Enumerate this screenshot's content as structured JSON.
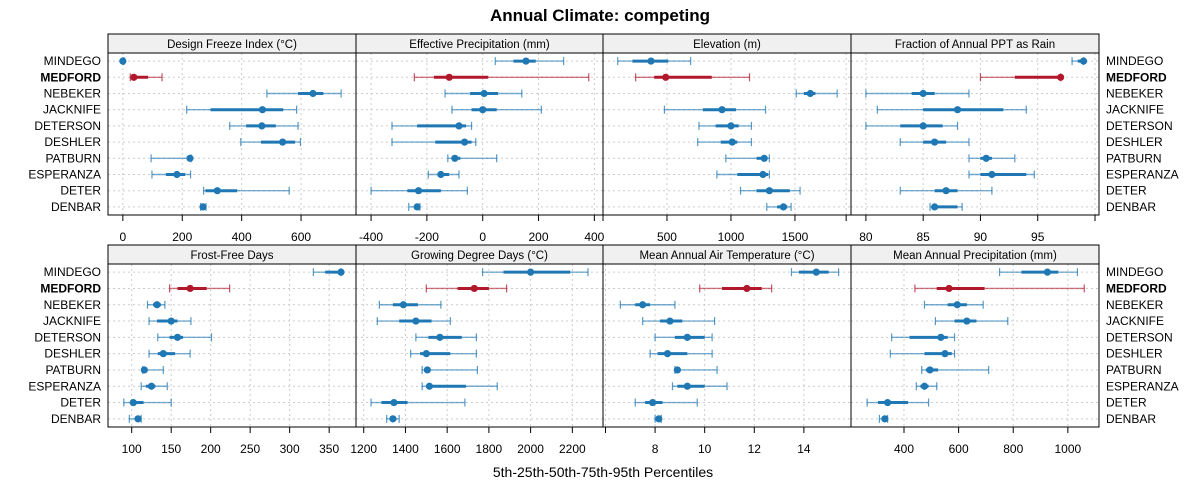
{
  "chart_data": {
    "type": "dot-interval",
    "title": "Annual Climate: competing",
    "xlabel": "5th-25th-50th-75th-95th Percentiles",
    "layout": "4 columns x 2 rows of panels",
    "categories": [
      "MINDEGO",
      "MEDFORD",
      "NEBEKER",
      "JACKNIFE",
      "DETERSON",
      "DESHLER",
      "PATBURN",
      "ESPERANZA",
      "DETER",
      "DENBAR"
    ],
    "highlight_category": "MEDFORD",
    "colors": {
      "default": "#1f78b4",
      "highlight": "#b2182b",
      "strip_bg": "#f0f0f0",
      "grid": "#cccccc"
    },
    "grid": true,
    "percentile_order": [
      "p5",
      "p25",
      "p50",
      "p75",
      "p95"
    ],
    "panels": [
      {
        "title": "Design Freeze Index (°C)",
        "xlim": [
          -50,
          785
        ],
        "ticks": [
          0,
          200,
          400,
          600
        ],
        "tick_labels": [
          "0",
          "200",
          "400",
          "600"
        ],
        "values": {
          "MINDEGO": [
            0,
            0,
            0,
            2,
            4
          ],
          "MEDFORD": [
            25,
            30,
            37,
            85,
            132
          ],
          "NEBEKER": [
            485,
            590,
            640,
            675,
            735
          ],
          "JACKNIFE": [
            215,
            295,
            470,
            540,
            585
          ],
          "DETERSON": [
            360,
            415,
            468,
            515,
            590
          ],
          "DESHLER": [
            397,
            465,
            538,
            580,
            598
          ],
          "PATBURN": [
            95,
            220,
            226,
            228,
            230
          ],
          "ESPERANZA": [
            98,
            145,
            182,
            210,
            228
          ],
          "DETER": [
            272,
            278,
            318,
            385,
            560
          ],
          "DENBAR": [
            262,
            265,
            270,
            275,
            280
          ]
        }
      },
      {
        "title": "Effective Precipitation (mm)",
        "xlim": [
          -454,
          431
        ],
        "ticks": [
          -400,
          -200,
          0,
          200,
          400
        ],
        "tick_labels": [
          "-400",
          "-200",
          "0",
          "200",
          "400"
        ],
        "values": {
          "MINDEGO": [
            45,
            110,
            155,
            190,
            290
          ],
          "MEDFORD": [
            -245,
            -175,
            -120,
            20,
            380
          ],
          "NEBEKER": [
            -135,
            -45,
            5,
            55,
            140
          ],
          "JACKNIFE": [
            -110,
            -40,
            0,
            50,
            210
          ],
          "DETERSON": [
            -325,
            -235,
            -85,
            -60,
            -40
          ],
          "DESHLER": [
            -325,
            -170,
            -65,
            -40,
            -25
          ],
          "PATBURN": [
            -125,
            -110,
            -100,
            -80,
            50
          ],
          "ESPERANZA": [
            -195,
            -160,
            -150,
            -120,
            -85
          ],
          "DETER": [
            -400,
            -270,
            -230,
            -150,
            -55
          ],
          "DENBAR": [
            -265,
            -245,
            -235,
            -230,
            -225
          ]
        }
      },
      {
        "title": "Elevation (m)",
        "xlim": [
          0,
          1938
        ],
        "ticks": [
          0,
          500,
          1000,
          1500,
          1900
        ],
        "tick_labels": [
          "",
          "500",
          "1000",
          "1500",
          ""
        ],
        "values": {
          "MINDEGO": [
            115,
            230,
            375,
            510,
            685
          ],
          "MEDFORD": [
            255,
            400,
            490,
            850,
            1145
          ],
          "NEBEKER": [
            1510,
            1570,
            1620,
            1660,
            1830
          ],
          "JACKNIFE": [
            480,
            780,
            930,
            1040,
            1270
          ],
          "DETERSON": [
            750,
            880,
            1000,
            1060,
            1160
          ],
          "DESHLER": [
            740,
            920,
            1010,
            1050,
            1160
          ],
          "PATBURN": [
            960,
            1200,
            1260,
            1280,
            1300
          ],
          "ESPERANZA": [
            890,
            1050,
            1250,
            1290,
            1300
          ],
          "DETER": [
            1075,
            1200,
            1300,
            1460,
            1540
          ],
          "DENBAR": [
            1280,
            1360,
            1410,
            1440,
            1470
          ]
        }
      },
      {
        "title": "Fraction of Annual PPT as Rain",
        "xlim": [
          78.7,
          100.35
        ],
        "ticks": [
          80,
          85,
          90,
          95,
          100
        ],
        "tick_labels": [
          "80",
          "85",
          "90",
          "95",
          ""
        ],
        "values": {
          "MINDEGO": [
            98,
            98.5,
            99,
            99,
            99
          ],
          "MEDFORD": [
            90,
            93,
            97,
            97,
            97
          ],
          "NEBEKER": [
            80,
            84,
            85,
            86,
            89
          ],
          "JACKNIFE": [
            81,
            85,
            88,
            92,
            94
          ],
          "DETERSON": [
            80,
            83,
            85,
            86.7,
            88
          ],
          "DESHLER": [
            83,
            85,
            86,
            87,
            89
          ],
          "PATBURN": [
            89,
            90,
            90.5,
            91,
            93
          ],
          "ESPERANZA": [
            89,
            90,
            91,
            94,
            94.7
          ],
          "DETER": [
            83,
            86,
            87,
            88,
            91
          ],
          "DENBAR": [
            85.6,
            85.8,
            86,
            88,
            88.4
          ]
        }
      },
      {
        "title": "Frost-Free Days",
        "xlim": [
          70,
          384
        ],
        "ticks": [
          100,
          150,
          200,
          250,
          300,
          350
        ],
        "tick_labels": [
          "100",
          "150",
          "200",
          "250",
          "300",
          "350"
        ],
        "values": {
          "MINDEGO": [
            330,
            345,
            365,
            365,
            365
          ],
          "MEDFORD": [
            148,
            158,
            174,
            195,
            224
          ],
          "NEBEKER": [
            120,
            127,
            132,
            137,
            142
          ],
          "JACKNIFE": [
            122,
            132,
            150,
            158,
            175
          ],
          "DETERSON": [
            133,
            148,
            158,
            165,
            201
          ],
          "DESHLER": [
            122,
            133,
            140,
            155,
            174
          ],
          "PATBURN": [
            114,
            114,
            116,
            120,
            140
          ],
          "ESPERANZA": [
            112,
            118,
            125,
            130,
            145
          ],
          "DETER": [
            90,
            98,
            102,
            115,
            150
          ],
          "DENBAR": [
            97,
            104,
            108,
            110,
            112
          ]
        }
      },
      {
        "title": "Growing Degree Days (°C)",
        "xlim": [
          1163,
          2347
        ],
        "ticks": [
          1200,
          1400,
          1600,
          1800,
          2000,
          2200
        ],
        "tick_labels": [
          "1200",
          "1400",
          "1600",
          "1800",
          "2000",
          "2200"
        ],
        "values": {
          "MINDEGO": [
            1770,
            1870,
            2000,
            2190,
            2275
          ],
          "MEDFORD": [
            1500,
            1650,
            1730,
            1800,
            1885
          ],
          "NEBEKER": [
            1275,
            1340,
            1390,
            1460,
            1570
          ],
          "JACKNIFE": [
            1265,
            1370,
            1450,
            1525,
            1615
          ],
          "DETERSON": [
            1450,
            1510,
            1565,
            1670,
            1740
          ],
          "DESHLER": [
            1425,
            1470,
            1500,
            1615,
            1740
          ],
          "PATBURN": [
            1480,
            1500,
            1505,
            1520,
            1745
          ],
          "ESPERANZA": [
            1480,
            1500,
            1515,
            1690,
            1840
          ],
          "DETER": [
            1235,
            1285,
            1345,
            1410,
            1685
          ],
          "DENBAR": [
            1310,
            1330,
            1340,
            1350,
            1370
          ]
        }
      },
      {
        "title": "Mean Annual Air Temperature (°C)",
        "xlim": [
          5.9,
          15.9
        ],
        "ticks": [
          6,
          8,
          10,
          12,
          14
        ],
        "tick_labels": [
          "",
          "8",
          "10",
          "12",
          "14"
        ],
        "values": {
          "MINDEGO": [
            13.5,
            13.8,
            14.5,
            15,
            15.4
          ],
          "MEDFORD": [
            9.8,
            10.7,
            11.7,
            12.3,
            12.7
          ],
          "NEBEKER": [
            6.6,
            7.2,
            7.5,
            7.8,
            8.8
          ],
          "JACKNIFE": [
            7.5,
            8.2,
            8.6,
            9.1,
            10.4
          ],
          "DETERSON": [
            8,
            8.8,
            9.3,
            10,
            10.3
          ],
          "DESHLER": [
            7.8,
            8.1,
            8.5,
            9.3,
            10.3
          ],
          "PATBURN": [
            8.8,
            8.85,
            8.9,
            9,
            10.5
          ],
          "ESPERANZA": [
            8.7,
            8.9,
            9.3,
            10,
            10.9
          ],
          "DETER": [
            7.2,
            7.6,
            7.9,
            8.3,
            9.7
          ],
          "DENBAR": [
            8,
            8.1,
            8.15,
            8.2,
            8.25
          ]
        }
      },
      {
        "title": "Mean Annual Precipitation (mm)",
        "xlim": [
          206,
          1114
        ],
        "ticks": [
          400,
          600,
          800,
          1000
        ],
        "tick_labels": [
          "400",
          "600",
          "800",
          "1000"
        ],
        "values": {
          "MINDEGO": [
            750,
            830,
            925,
            965,
            1035
          ],
          "MEDFORD": [
            440,
            520,
            565,
            695,
            1060
          ],
          "NEBEKER": [
            475,
            560,
            595,
            630,
            690
          ],
          "JACKNIFE": [
            515,
            585,
            630,
            665,
            780
          ],
          "DETERSON": [
            355,
            420,
            535,
            560,
            585
          ],
          "DESHLER": [
            350,
            475,
            550,
            575,
            585
          ],
          "PATBURN": [
            465,
            480,
            495,
            525,
            710
          ],
          "ESPERANZA": [
            445,
            460,
            475,
            490,
            520
          ],
          "DETER": [
            265,
            305,
            340,
            415,
            490
          ],
          "DENBAR": [
            310,
            320,
            330,
            335,
            340
          ]
        }
      }
    ]
  }
}
